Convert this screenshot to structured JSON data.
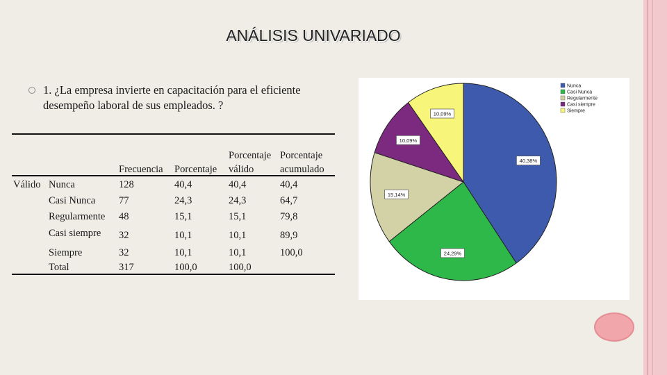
{
  "title": "ANÁLISIS UNIVARIADO",
  "question": "1. ¿La empresa invierte en  capacitación para el eficiente desempeño laboral de sus empleados. ?",
  "table": {
    "row_group_label": "Válido",
    "headers": {
      "frecuencia": "Frecuencia",
      "porcentaje": "Porcentaje",
      "valido_line1": "Porcentaje",
      "valido_line2": "válido",
      "acumulado_line1": "Porcentaje",
      "acumulado_line2": "acumulado"
    },
    "rows": [
      {
        "label": "Nunca",
        "frecuencia": "128",
        "porcentaje": "40,4",
        "valido": "40,4",
        "acumulado": "40,4"
      },
      {
        "label": "Casi Nunca",
        "frecuencia": "77",
        "porcentaje": "24,3",
        "valido": "24,3",
        "acumulado": "64,7"
      },
      {
        "label": "Regularmente",
        "frecuencia": "48",
        "porcentaje": "15,1",
        "valido": "15,1",
        "acumulado": "79,8"
      },
      {
        "label": "Casi siempre",
        "frecuencia": "32",
        "porcentaje": "10,1",
        "valido": "10,1",
        "acumulado": "89,9"
      },
      {
        "label": "Siempre",
        "frecuencia": "32",
        "porcentaje": "10,1",
        "valido": "10,1",
        "acumulado": "100,0"
      },
      {
        "label": "Total",
        "frecuencia": "317",
        "porcentaje": "100,0",
        "valido": "100,0",
        "acumulado": ""
      }
    ]
  },
  "chart_data": {
    "type": "pie",
    "title": "",
    "legend_position": "top-right",
    "slices": [
      {
        "label": "Nunca",
        "value": 40.38,
        "display": "40,38%",
        "color": "#3d5aad"
      },
      {
        "label": "Casi Nunca",
        "value": 24.29,
        "display": "24,29%",
        "color": "#2eb84a"
      },
      {
        "label": "Regularmente",
        "value": 15.14,
        "display": "15,14%",
        "color": "#d3d1a6"
      },
      {
        "label": "Casi siempre",
        "value": 10.09,
        "display": "10,09%",
        "color": "#7b2a7f"
      },
      {
        "label": "Siempre",
        "value": 10.09,
        "display": "10,09%",
        "color": "#f7f57a"
      }
    ]
  }
}
